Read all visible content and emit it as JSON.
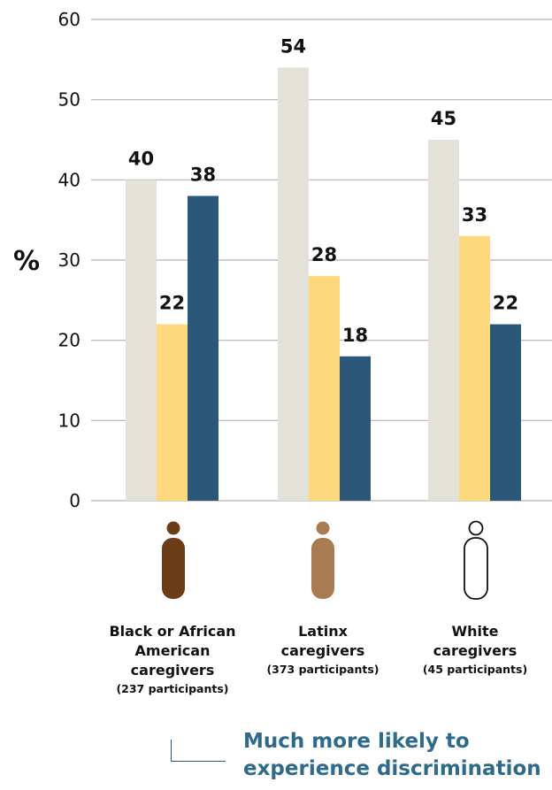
{
  "chart_data": {
    "type": "bar",
    "ylabel": "%",
    "ylim": [
      0,
      60
    ],
    "yticks": [
      0,
      10,
      20,
      30,
      40,
      50,
      60
    ],
    "grid": true,
    "categories": [
      {
        "label": "Black or African American caregivers",
        "participants": "(237 participants)"
      },
      {
        "label": "Latinx caregivers",
        "participants": "(373 participants)"
      },
      {
        "label": "White caregivers",
        "participants": "(45 participants)"
      }
    ],
    "series": [
      {
        "color": "#e3e1d8",
        "values": [
          40,
          54,
          45
        ]
      },
      {
        "color": "#fdd87c",
        "values": [
          22,
          28,
          33
        ]
      },
      {
        "color": "#2b5878",
        "values": [
          38,
          18,
          22
        ]
      }
    ],
    "icon_colors": [
      "#6a3d17",
      "#a87b53",
      "#ffffff"
    ]
  },
  "legend": {
    "text": "Much more likely to experience discrimination"
  }
}
